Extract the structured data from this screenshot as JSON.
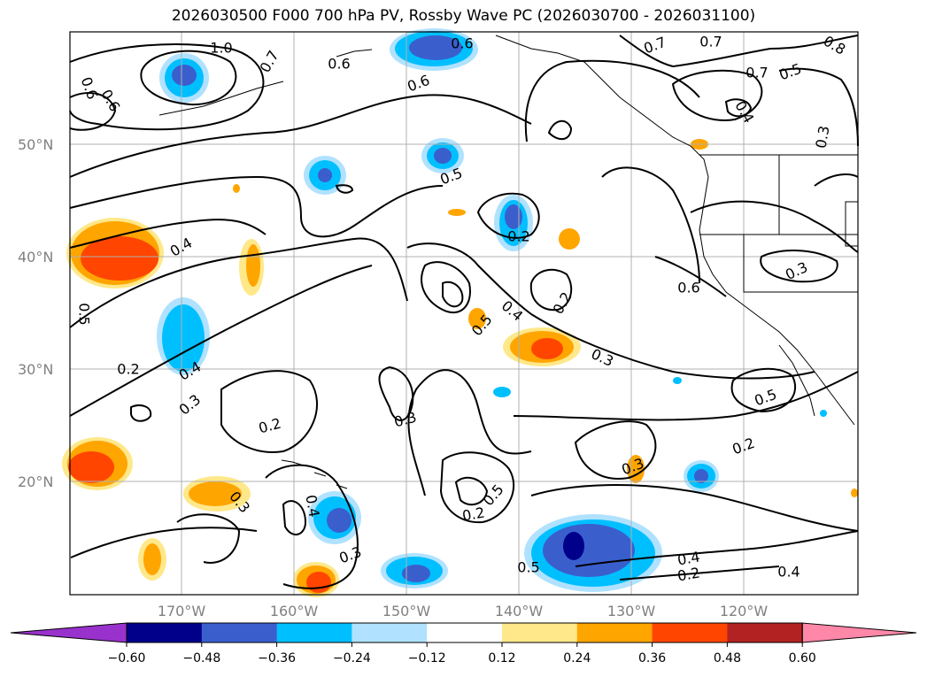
{
  "title": "2026030500 F000 700 hPa PV, Rossby Wave PC (2026030700 - 2026031100)",
  "lat_labels": [
    "50°N",
    "40°N",
    "30°N",
    "20°N"
  ],
  "lon_labels": [
    "170°W",
    "160°W",
    "150°W",
    "140°W",
    "130°W",
    "120°W"
  ],
  "contour_labels": [
    "1.0",
    "0.7",
    "0.6",
    "0.6",
    "0.7",
    "0.7",
    "0.8",
    "0.6",
    "0.6",
    "0.7",
    "0.5",
    "0.4",
    "0.3",
    "0.6",
    "0.5",
    "0.2",
    "0.4",
    "0.5",
    "0.4",
    "0.5",
    "0.2",
    "0.3",
    "0.6",
    "0.2",
    "0.3",
    "0.4",
    "0.3",
    "0.2",
    "0.3",
    "0.5",
    "0.3",
    "0.2",
    "0.3",
    "0.4",
    "0.5",
    "0.2",
    "0.3",
    "0.4",
    "0.2",
    "0.5",
    "0.4"
  ],
  "colorbar": {
    "ticks": [
      "−0.60",
      "−0.48",
      "−0.36",
      "−0.24",
      "−0.12",
      "0.12",
      "0.24",
      "0.36",
      "0.48",
      "0.60"
    ],
    "colors": [
      "#9932cc",
      "#00008b",
      "#3a5fcd",
      "#00bfff",
      "#b0e2ff",
      "#ffffff",
      "#ffe88a",
      "#ffa500",
      "#ff4500",
      "#b22222",
      "#ff88a8"
    ]
  },
  "legend_colors": {
    "very_neg": "#00008b",
    "neg_strong": "#3a5fcd",
    "neg_mid": "#00bfff",
    "neg_light": "#b0e2ff",
    "pos_light": "#ffe88a",
    "pos_mid": "#ffa500",
    "pos_strong": "#ff4500"
  }
}
